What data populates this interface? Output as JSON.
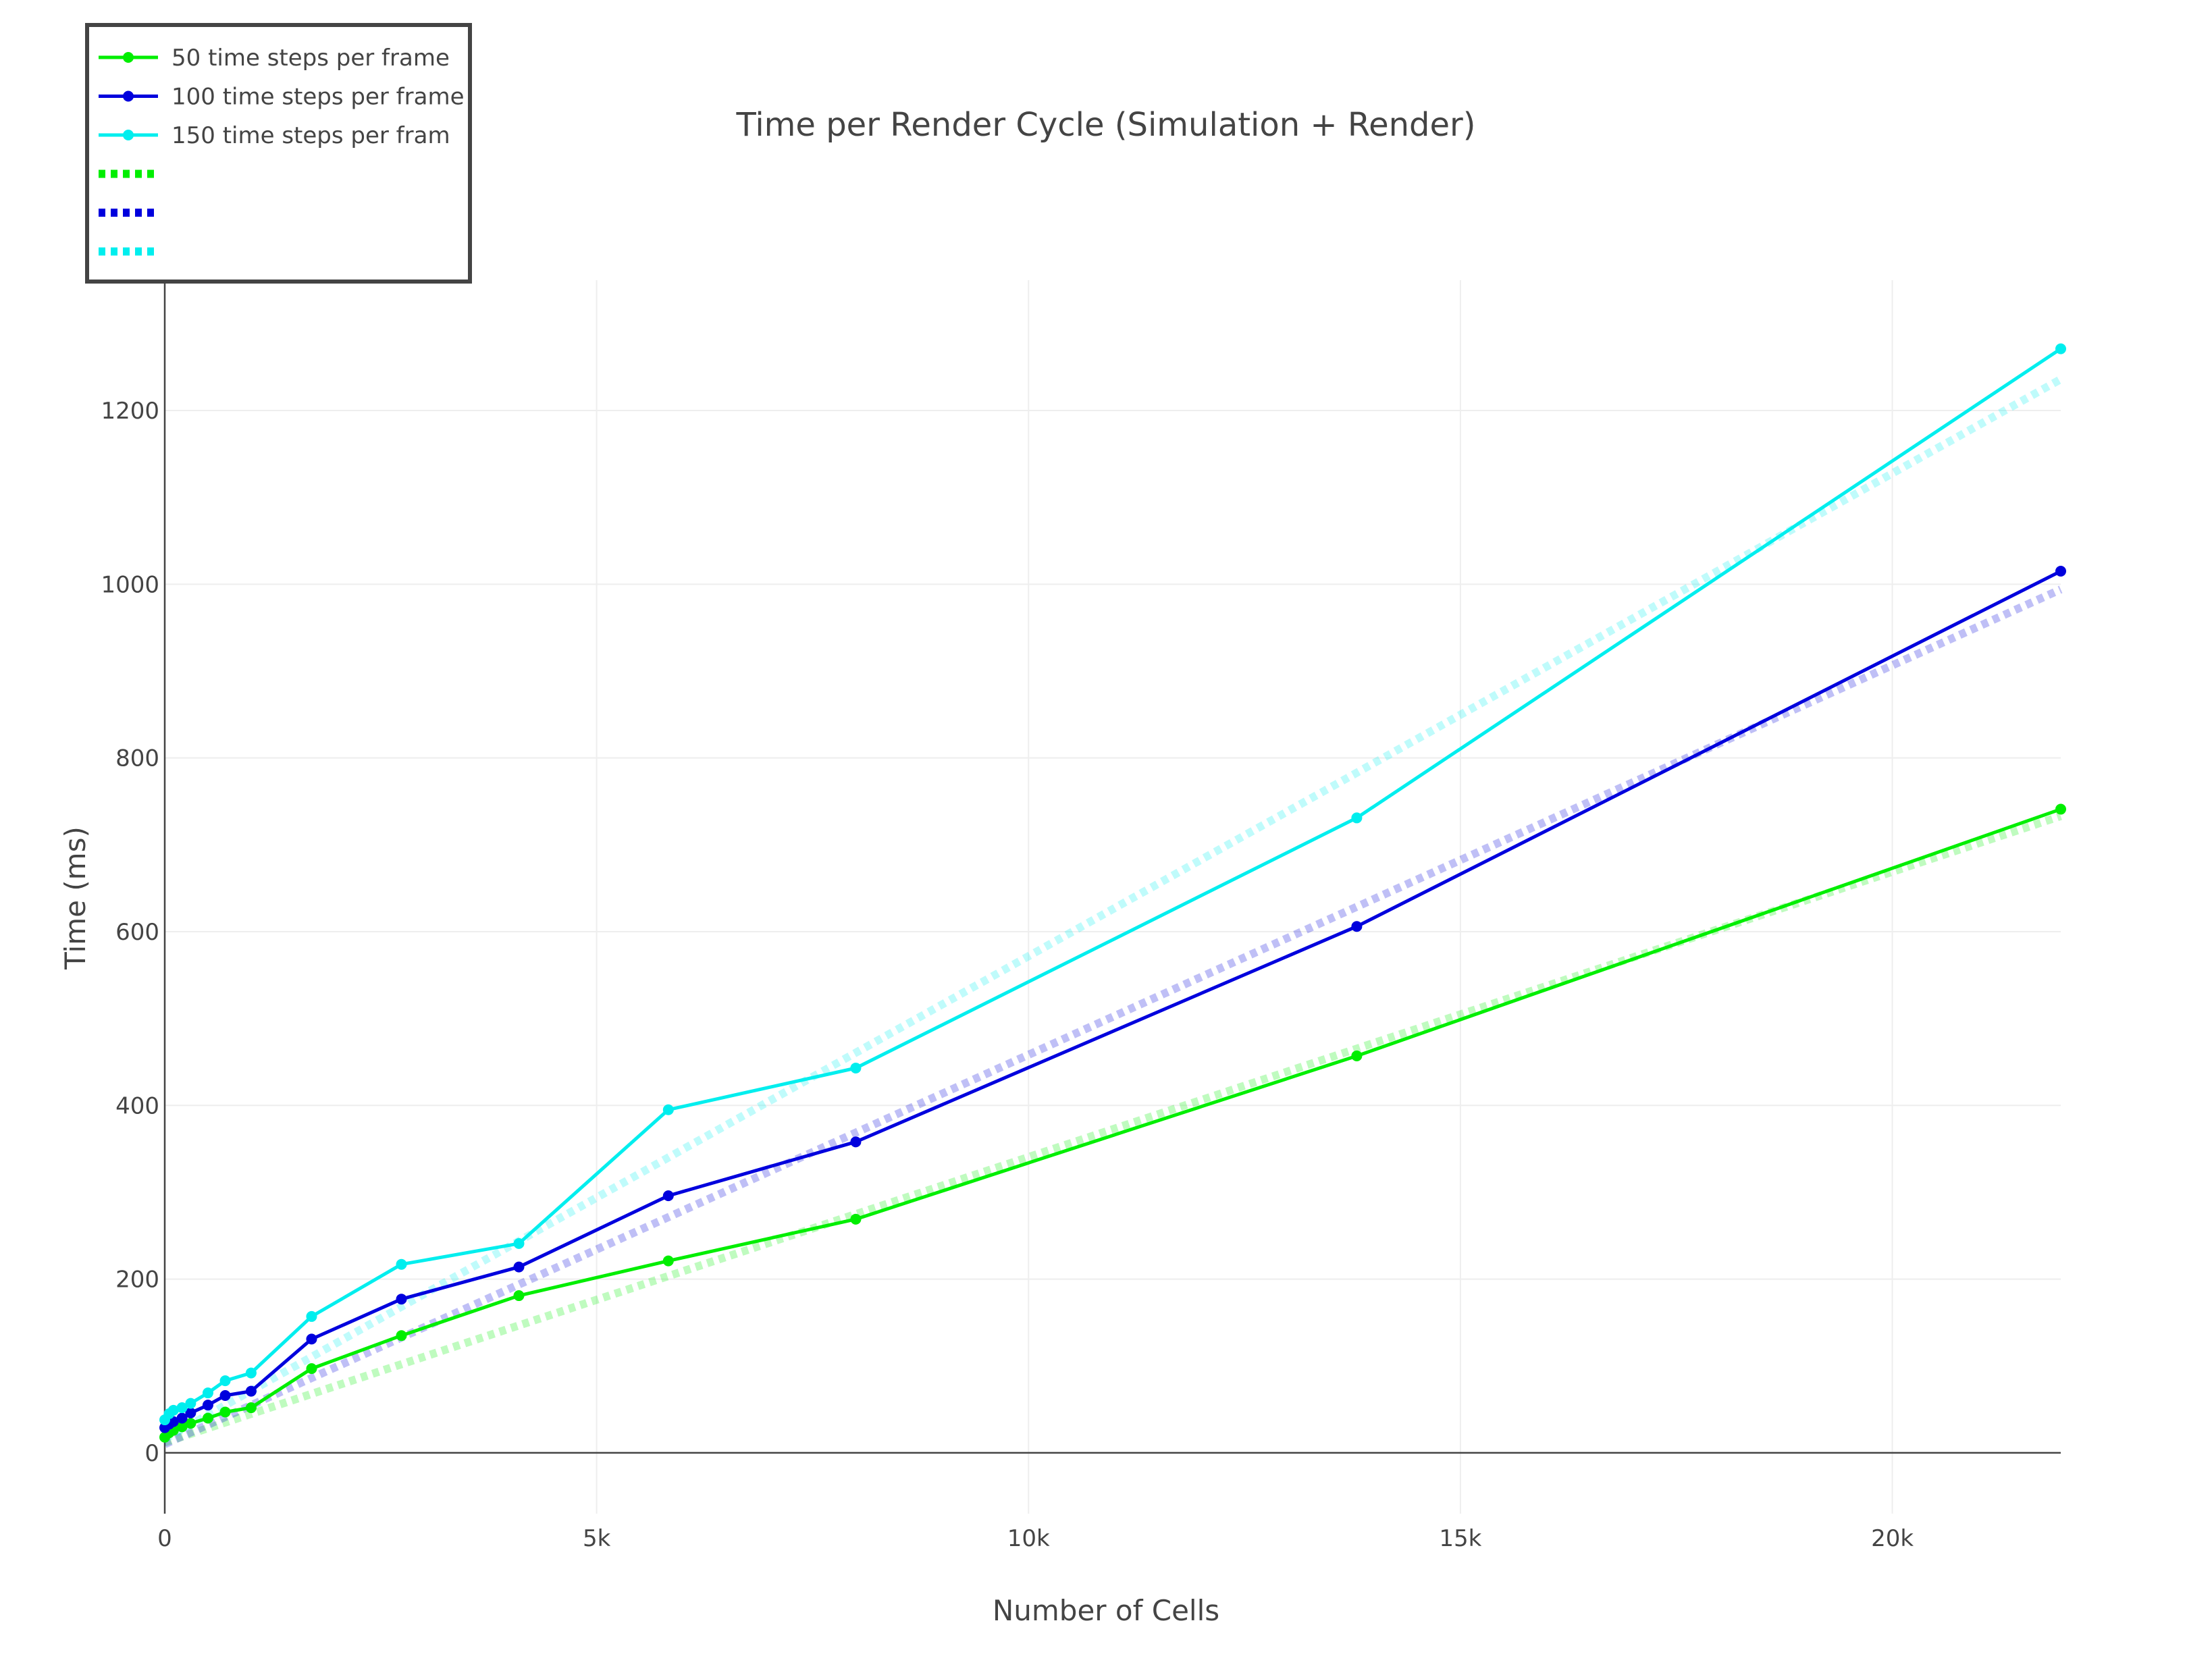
{
  "chart_data": {
    "type": "line",
    "title": "Time per Render Cycle (Simulation + Render)",
    "xlabel": "Number of Cells",
    "ylabel": "Time (ms)",
    "xlim": [
      0,
      21950
    ],
    "ylim": [
      -70,
      1350
    ],
    "x_ticks": [
      0,
      5000,
      10000,
      15000,
      20000
    ],
    "x_tick_labels": [
      "0",
      "5k",
      "10k",
      "15k",
      "20k"
    ],
    "y_ticks": [
      0,
      200,
      400,
      600,
      800,
      1000,
      1200
    ],
    "y_tick_labels": [
      "0",
      "200",
      "400",
      "600",
      "800",
      "1000",
      "1200"
    ],
    "grid": true,
    "legend_position": "top-left",
    "colors": {
      "green": "#00ee00",
      "blue": "#0000dd",
      "cyan": "#00eeee"
    },
    "series": [
      {
        "name": "50 time steps per frame",
        "color": "#00ee00",
        "style": "solid-markers",
        "x": [
          0,
          50,
          100,
          200,
          300,
          500,
          700,
          1000,
          1700,
          2740,
          4100,
          5830,
          8000,
          13800,
          21950
        ],
        "y": [
          18,
          23,
          26,
          30,
          34,
          40,
          47,
          52,
          97,
          135,
          181,
          221,
          269,
          457,
          741
        ]
      },
      {
        "name": "100 time steps per frame",
        "color": "#0000dd",
        "style": "solid-markers",
        "x": [
          0,
          50,
          100,
          200,
          300,
          500,
          700,
          1000,
          1700,
          2740,
          4100,
          5830,
          8000,
          13800,
          21950
        ],
        "y": [
          29,
          33,
          36,
          40,
          46,
          55,
          66,
          71,
          131,
          177,
          214,
          296,
          358,
          606,
          1015
        ]
      },
      {
        "name": "150 time steps per fram",
        "color": "#00eeee",
        "style": "solid-markers",
        "x": [
          0,
          50,
          100,
          200,
          300,
          500,
          700,
          1000,
          1700,
          2740,
          4100,
          5830,
          8000,
          13800,
          21950
        ],
        "y": [
          38,
          45,
          49,
          52,
          57,
          69,
          83,
          92,
          157,
          217,
          241,
          395,
          443,
          731,
          1271
        ]
      },
      {
        "name": "",
        "color": "#00ee00",
        "style": "dotted-fit",
        "x": [
          0,
          21950
        ],
        "y": [
          12,
          733
        ]
      },
      {
        "name": "",
        "color": "#0000dd",
        "style": "dotted-fit",
        "x": [
          0,
          21950
        ],
        "y": [
          10,
          994
        ]
      },
      {
        "name": "",
        "color": "#00eeee",
        "style": "dotted-fit",
        "x": [
          0,
          21950
        ],
        "y": [
          16,
          1236
        ]
      }
    ]
  }
}
